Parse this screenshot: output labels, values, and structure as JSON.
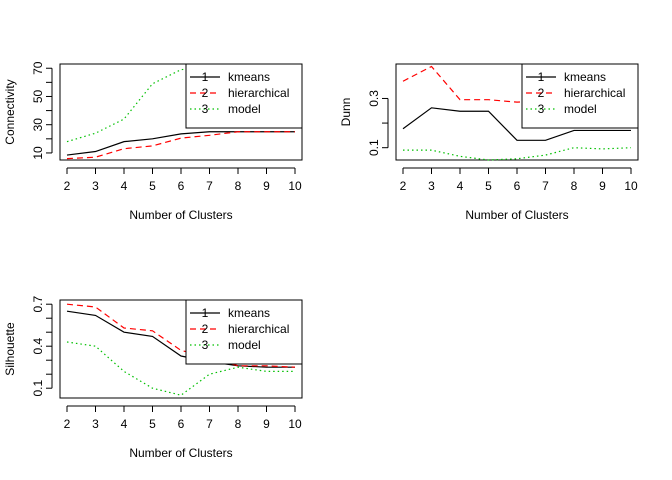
{
  "chart_data": [
    {
      "type": "line",
      "ylabel": "Connectivity",
      "xlabel": "Number of Clusters",
      "x": [
        2,
        3,
        4,
        5,
        6,
        7,
        8,
        9,
        10
      ],
      "ylim": [
        5,
        73
      ],
      "yticks": [
        10,
        30,
        50,
        70
      ],
      "yticks_minor": [
        20,
        40,
        60
      ],
      "series": [
        {
          "name": "kmeans",
          "symbol": "1",
          "color": "#000000",
          "dash": "solid",
          "values": [
            8.5,
            11,
            18,
            20,
            23.5,
            25,
            25,
            25,
            25
          ]
        },
        {
          "name": "hierarchical",
          "symbol": "2",
          "color": "#ff0000",
          "dash": "dashed",
          "values": [
            6,
            7,
            13,
            15,
            20.5,
            22.5,
            25,
            25,
            25
          ]
        },
        {
          "name": "model",
          "symbol": "3",
          "color": "#00c000",
          "dash": "dotted",
          "values": [
            18,
            24,
            34,
            59,
            69,
            71,
            71,
            71,
            71
          ]
        }
      ],
      "legend": "top-right"
    },
    {
      "type": "line",
      "ylabel": "Dunn",
      "xlabel": "Number of Clusters",
      "x": [
        2,
        3,
        4,
        5,
        6,
        7,
        8,
        9,
        10
      ],
      "ylim": [
        0.05,
        0.44
      ],
      "yticks": [
        0.1,
        0.3
      ],
      "yticks_minor": [
        0.2
      ],
      "series": [
        {
          "name": "kmeans",
          "symbol": "1",
          "color": "#000000",
          "dash": "solid",
          "values": [
            0.177,
            0.262,
            0.248,
            0.248,
            0.13,
            0.13,
            0.17,
            0.17,
            0.17
          ]
        },
        {
          "name": "hierarchical",
          "symbol": "2",
          "color": "#ff0000",
          "dash": "dashed",
          "values": [
            0.37,
            0.43,
            0.295,
            0.295,
            0.285,
            0.29,
            0.3,
            0.3,
            0.3
          ]
        },
        {
          "name": "model",
          "symbol": "3",
          "color": "#00c000",
          "dash": "dotted",
          "values": [
            0.09,
            0.09,
            0.065,
            0.05,
            0.055,
            0.07,
            0.1,
            0.095,
            0.1
          ]
        }
      ],
      "legend": "top-right"
    },
    {
      "type": "line",
      "ylabel": "Silhouette",
      "xlabel": "Number of Clusters",
      "x": [
        2,
        3,
        4,
        5,
        6,
        7,
        8,
        9,
        10
      ],
      "ylim": [
        0.03,
        0.73
      ],
      "yticks": [
        0.1,
        0.4,
        0.7
      ],
      "yticks_minor": [
        0.2,
        0.3,
        0.5,
        0.6
      ],
      "series": [
        {
          "name": "kmeans",
          "symbol": "1",
          "color": "#000000",
          "dash": "solid",
          "values": [
            0.65,
            0.62,
            0.5,
            0.47,
            0.33,
            0.29,
            0.26,
            0.25,
            0.25
          ]
        },
        {
          "name": "hierarchical",
          "symbol": "2",
          "color": "#ff0000",
          "dash": "dashed",
          "values": [
            0.7,
            0.68,
            0.53,
            0.51,
            0.37,
            0.32,
            0.26,
            0.26,
            0.25
          ]
        },
        {
          "name": "model",
          "symbol": "3",
          "color": "#00c000",
          "dash": "dotted",
          "values": [
            0.43,
            0.4,
            0.22,
            0.1,
            0.05,
            0.2,
            0.25,
            0.22,
            0.22
          ]
        }
      ],
      "legend": "top-right"
    }
  ]
}
